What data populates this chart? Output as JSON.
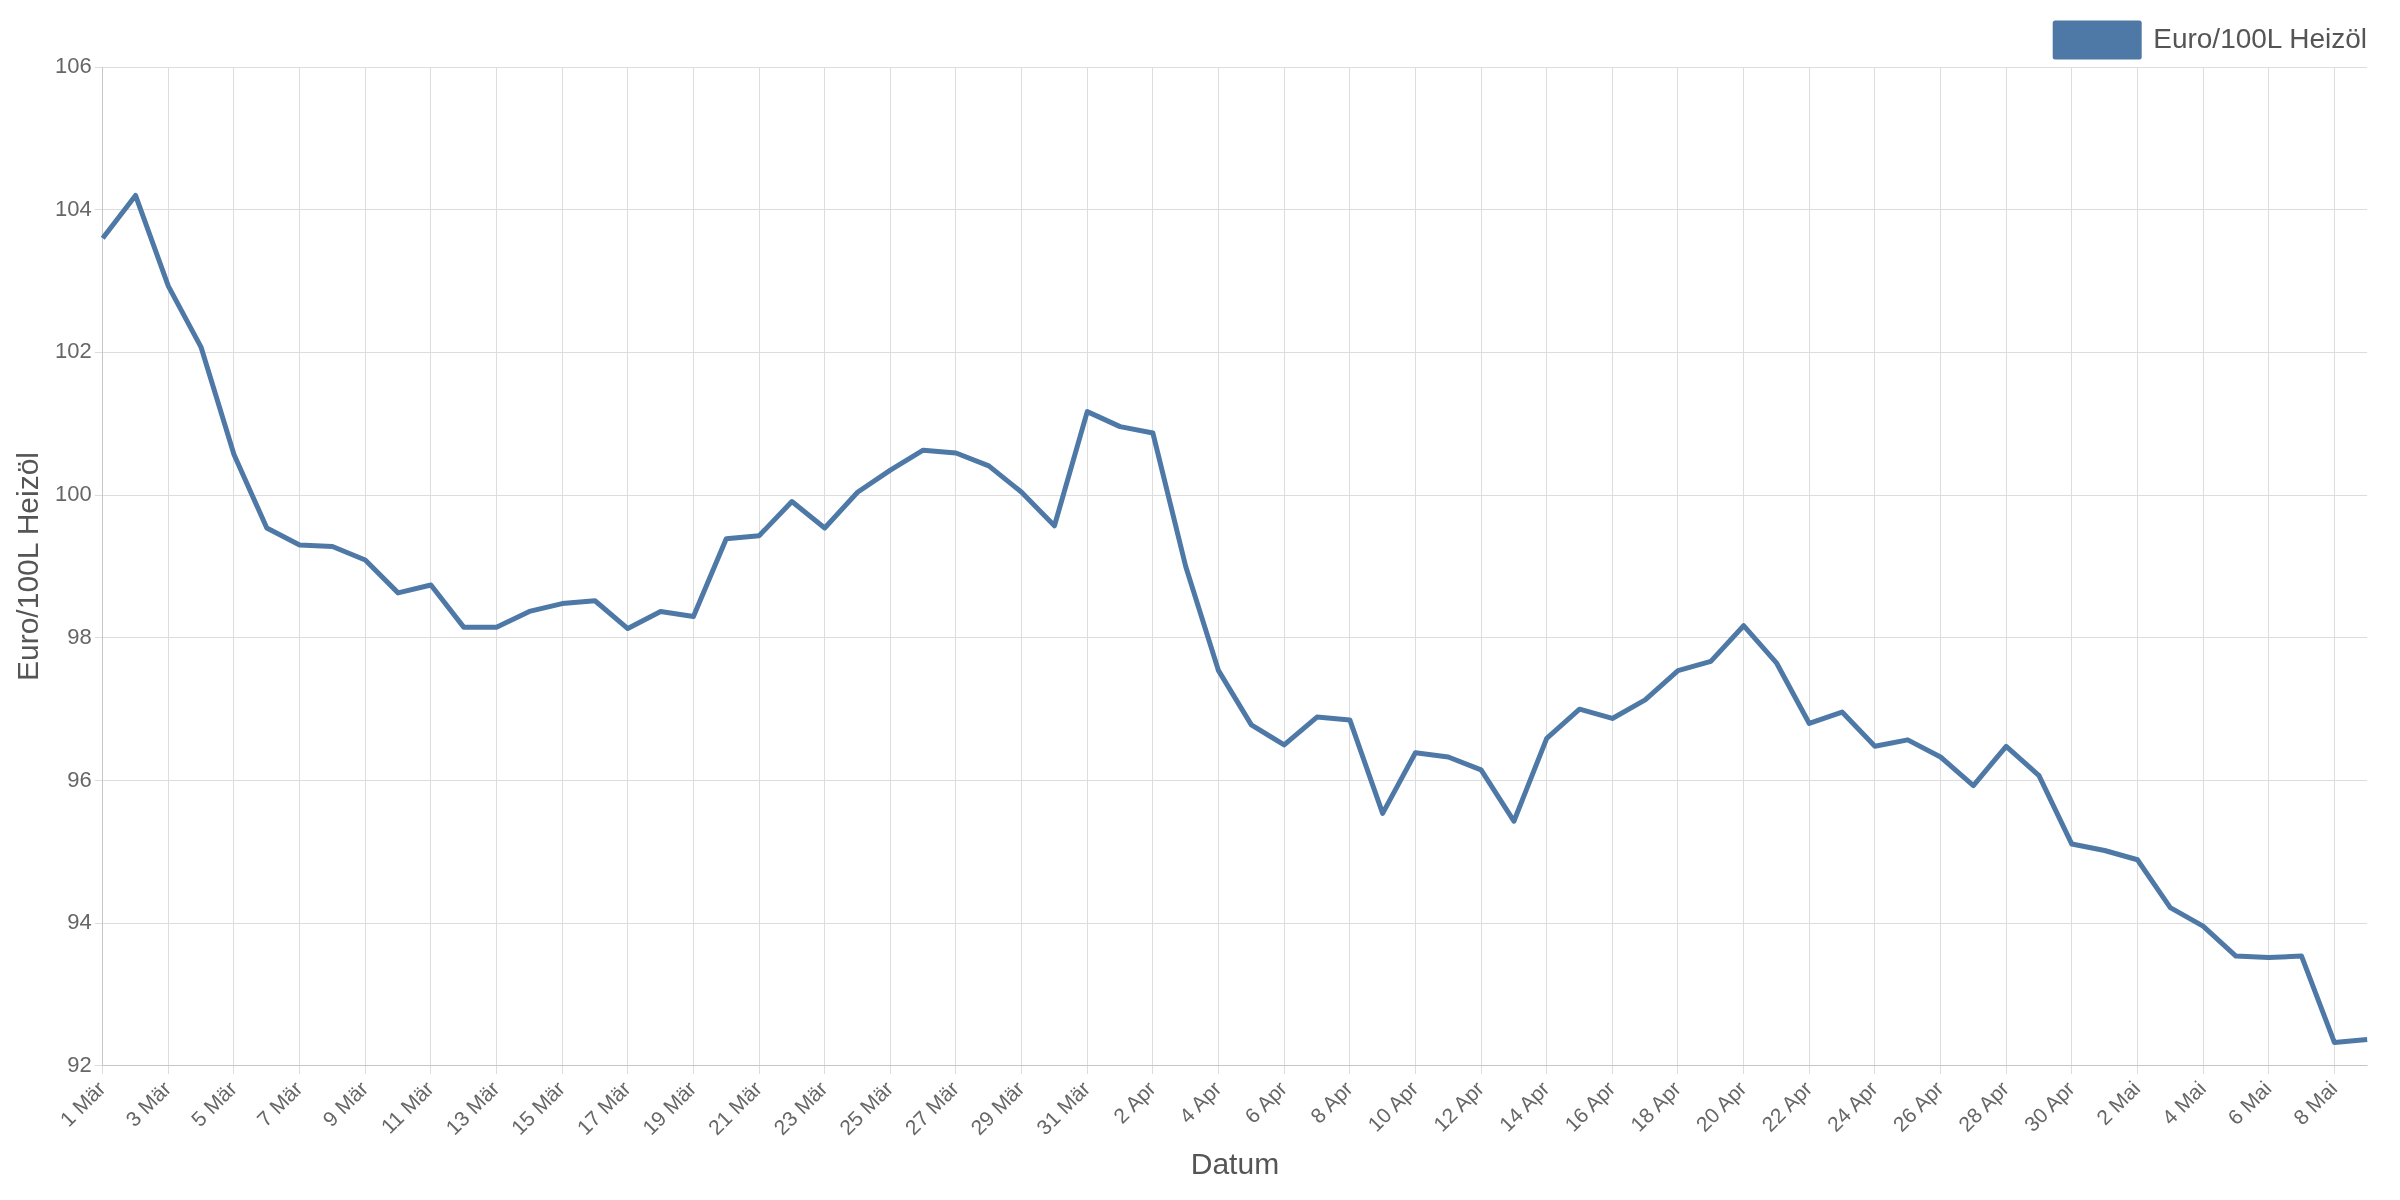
{
  "chart_data": {
    "type": "line",
    "xlabel": "Datum",
    "ylabel": "Euro/100L Heizöl",
    "categories": [
      "1 Mär",
      null,
      "3 Mär",
      null,
      "5 Mär",
      null,
      "7 Mär",
      null,
      "9 Mär",
      null,
      "11 Mär",
      null,
      "13 Mär",
      null,
      "15 Mär",
      null,
      "17 Mär",
      null,
      "19 Mär",
      null,
      "21 Mär",
      null,
      "23 Mär",
      null,
      "25 Mär",
      null,
      "27 Mär",
      null,
      "29 Mär",
      null,
      "31 Mär",
      null,
      "2 Apr",
      null,
      "4 Apr",
      null,
      "6 Apr",
      null,
      "8 Apr",
      null,
      "10 Apr",
      null,
      "12 Apr",
      null,
      "14 Apr",
      null,
      "16 Apr",
      null,
      "18 Apr",
      null,
      "20 Apr",
      null,
      "22 Apr",
      null,
      "24 Apr",
      null,
      "26 Apr",
      null,
      "28 Apr",
      null,
      "30 Apr",
      null,
      "2 Mai",
      null,
      "4 Mai",
      null,
      "6 Mai",
      null,
      "8 Mai",
      null
    ],
    "series": [
      {
        "name": "Euro/100L Heizöl",
        "color": "#4e79a7",
        "values": [
          103.6,
          104.2,
          102.93,
          102.07,
          100.57,
          99.54,
          99.3,
          99.28,
          99.09,
          98.63,
          98.74,
          98.15,
          98.15,
          98.37,
          98.48,
          98.52,
          98.13,
          98.37,
          98.3,
          99.39,
          99.43,
          99.91,
          99.54,
          100.04,
          100.35,
          100.63,
          100.59,
          100.41,
          100.04,
          99.57,
          101.17,
          100.96,
          100.87,
          99.0,
          97.54,
          96.78,
          96.5,
          96.89,
          96.85,
          95.54,
          96.39,
          96.33,
          96.15,
          95.43,
          96.59,
          97.0,
          96.87,
          97.13,
          97.54,
          97.67,
          98.17,
          97.65,
          96.8,
          96.96,
          96.48,
          96.57,
          96.33,
          95.93,
          96.48,
          96.07,
          95.11,
          95.02,
          94.89,
          94.22,
          93.96,
          93.54,
          93.52,
          93.54,
          92.33,
          92.37
        ]
      }
    ],
    "ylim": [
      92,
      106
    ],
    "yticks": [
      92,
      94,
      96,
      98,
      100,
      102,
      104,
      106
    ],
    "grid": true,
    "legend": "top right",
    "marker": "none",
    "line_style": "solid"
  }
}
